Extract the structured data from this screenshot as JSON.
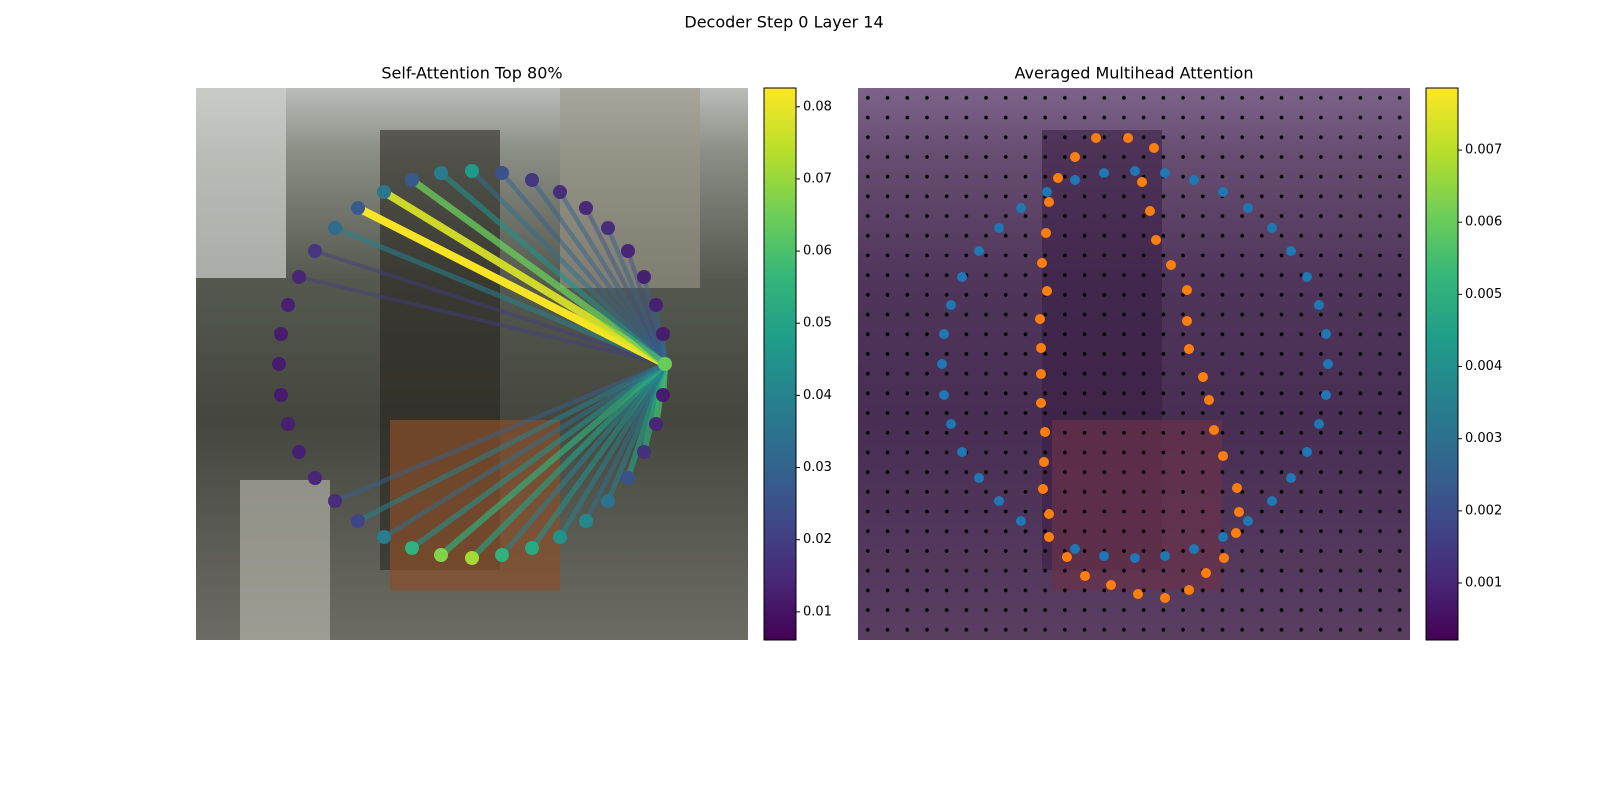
{
  "chart_data": [
    {
      "type": "attention-scatter",
      "suptitle": "Decoder Step 0 Layer 14",
      "title": "Self-Attention Top 80%",
      "xlim": [
        0,
        552
      ],
      "ylim": [
        552,
        0
      ],
      "query_index": 10,
      "x": [
        276,
        306,
        336,
        364,
        390,
        412,
        432,
        448,
        460,
        467,
        469,
        467,
        460,
        448,
        432,
        412,
        390,
        364,
        336,
        306,
        276,
        245,
        216,
        188,
        162,
        139,
        119,
        103,
        92,
        85,
        83,
        85,
        92,
        103,
        119,
        139,
        162,
        188,
        216,
        245
      ],
      "y": [
        83,
        85,
        92,
        104,
        120,
        140,
        163,
        189,
        217,
        246,
        276,
        307,
        336,
        364,
        390,
        413,
        433,
        449,
        460,
        467,
        470,
        467,
        460,
        449,
        433,
        413,
        390,
        364,
        336,
        307,
        276,
        246,
        217,
        189,
        163,
        140,
        120,
        104,
        92,
        85
      ],
      "values": [
        0.048,
        0.025,
        0.018,
        0.016,
        0.015,
        0.016,
        0.014,
        0.013,
        0.013,
        0.012,
        0.065,
        0.012,
        0.014,
        0.017,
        0.025,
        0.035,
        0.042,
        0.045,
        0.052,
        0.055,
        0.072,
        0.068,
        0.055,
        0.038,
        0.022,
        0.016,
        0.014,
        0.013,
        0.013,
        0.012,
        0.012,
        0.012,
        0.013,
        0.014,
        0.018,
        0.033,
        0.028,
        0.036,
        0.028,
        0.038
      ],
      "attention": [
        0.035,
        0.03,
        0.03,
        0.03,
        0.025,
        0.03,
        0.025,
        0.03,
        0.03,
        0.035,
        null,
        0.06,
        0.06,
        0.055,
        0.05,
        0.04,
        0.035,
        0.04,
        0.045,
        0.04,
        0.05,
        0.055,
        0.045,
        0.035,
        0.04,
        0.03,
        null,
        null,
        null,
        null,
        null,
        null,
        null,
        0.02,
        0.02,
        0.04,
        0.082,
        0.078,
        0.065,
        0.045
      ],
      "colorbar_lim": [
        0.0061,
        0.0826
      ],
      "colorbar_ticks": [
        0.01,
        0.02,
        0.03,
        0.04,
        0.05,
        0.06,
        0.07,
        0.08
      ]
    },
    {
      "type": "attention-map",
      "title": "Averaged Multihead Attention",
      "xlim": [
        0,
        552
      ],
      "ylim": [
        552,
        0
      ],
      "series": [
        {
          "color": "#1f77b4",
          "x": [
            189,
            163,
            141,
            121,
            104,
            93,
            86,
            84,
            86,
            93,
            104,
            121,
            141,
            163,
            217,
            246,
            277,
            307,
            336,
            365,
            390,
            414,
            433,
            449,
            461,
            468,
            470,
            468,
            461,
            449,
            433,
            414,
            390,
            365,
            336,
            307,
            277,
            246,
            217
          ],
          "y": [
            104,
            120,
            140,
            163,
            189,
            217,
            246,
            276,
            307,
            336,
            364,
            390,
            413,
            433,
            461,
            468,
            470,
            468,
            461,
            449,
            433,
            413,
            390,
            364,
            336,
            307,
            276,
            246,
            217,
            189,
            163,
            140,
            120,
            104,
            92,
            85,
            83,
            85,
            92
          ]
        },
        {
          "color": "#ff7f0e",
          "x": [
            238,
            270,
            296,
            217,
            200,
            284,
            191,
            292,
            188,
            298,
            184,
            313,
            189,
            329,
            182,
            329,
            183,
            331,
            183,
            345,
            183,
            351,
            187,
            356,
            186,
            365,
            185,
            379,
            191,
            381,
            191,
            378,
            209,
            366,
            227,
            348,
            253,
            331,
            280,
            307
          ],
          "y": [
            50,
            50,
            60,
            69,
            90,
            94,
            114,
            123,
            145,
            152,
            175,
            177,
            203,
            202,
            231,
            233,
            260,
            261,
            286,
            289,
            315,
            312,
            344,
            342,
            374,
            368,
            401,
            400,
            426,
            424,
            449,
            445,
            469,
            470,
            488,
            485,
            497,
            502,
            506,
            510
          ]
        }
      ],
      "colorbar_lim": [
        0.00021,
        0.00786
      ],
      "colorbar_ticks": [
        0.001,
        0.002,
        0.003,
        0.004,
        0.005,
        0.006,
        0.007
      ]
    }
  ]
}
